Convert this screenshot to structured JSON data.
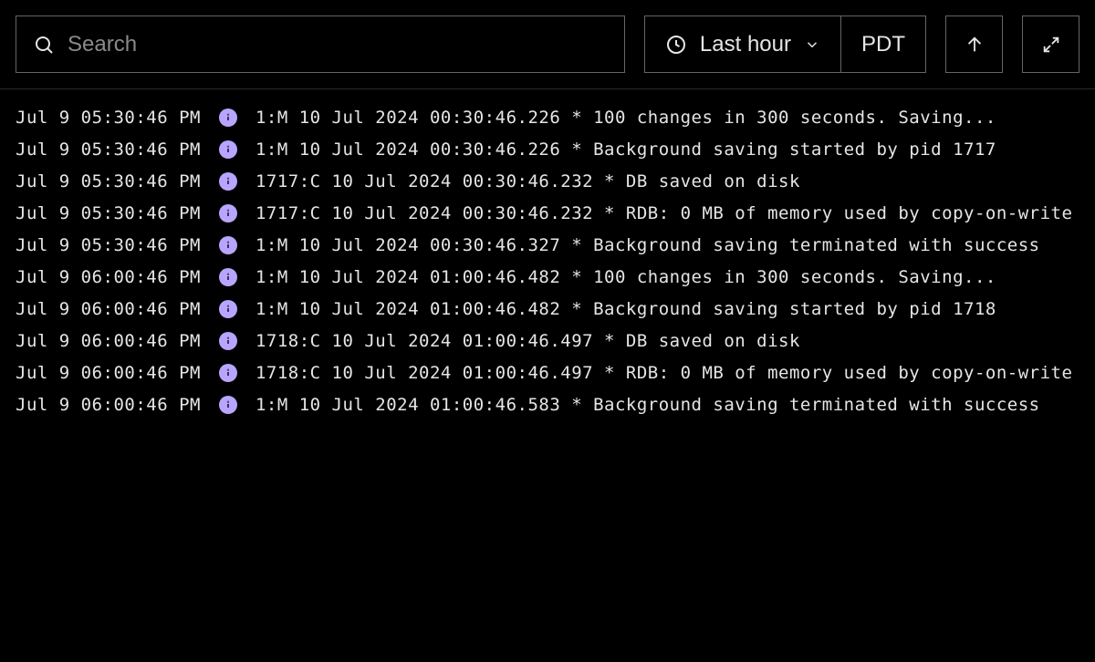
{
  "toolbar": {
    "search_placeholder": "Search",
    "time_range_label": "Last hour",
    "timezone_label": "PDT"
  },
  "colors": {
    "background": "#000000",
    "text": "#e5e5e5",
    "border": "#666666",
    "placeholder": "#8a8a8a",
    "info_badge": "#b8a5ff",
    "info_badge_text": "#2a2040",
    "divider": "#2a2a2a"
  },
  "log_level_icon": "info",
  "logs": [
    {
      "ts": "Jul 9 05:30:46 PM",
      "level": "info",
      "msg": "1:M 10 Jul 2024 00:30:46.226 * 100 changes in 300 seconds. Saving..."
    },
    {
      "ts": "Jul 9 05:30:46 PM",
      "level": "info",
      "msg": "1:M 10 Jul 2024 00:30:46.226 * Background saving started by pid 1717"
    },
    {
      "ts": "Jul 9 05:30:46 PM",
      "level": "info",
      "msg": "1717:C 10 Jul 2024 00:30:46.232 * DB saved on disk"
    },
    {
      "ts": "Jul 9 05:30:46 PM",
      "level": "info",
      "msg": "1717:C 10 Jul 2024 00:30:46.232 * RDB: 0 MB of memory used by copy-on-write"
    },
    {
      "ts": "Jul 9 05:30:46 PM",
      "level": "info",
      "msg": "1:M 10 Jul 2024 00:30:46.327 * Background saving terminated with success"
    },
    {
      "ts": "Jul 9 06:00:46 PM",
      "level": "info",
      "msg": "1:M 10 Jul 2024 01:00:46.482 * 100 changes in 300 seconds. Saving..."
    },
    {
      "ts": "Jul 9 06:00:46 PM",
      "level": "info",
      "msg": "1:M 10 Jul 2024 01:00:46.482 * Background saving started by pid 1718"
    },
    {
      "ts": "Jul 9 06:00:46 PM",
      "level": "info",
      "msg": "1718:C 10 Jul 2024 01:00:46.497 * DB saved on disk"
    },
    {
      "ts": "Jul 9 06:00:46 PM",
      "level": "info",
      "msg": "1718:C 10 Jul 2024 01:00:46.497 * RDB: 0 MB of memory used by copy-on-write"
    },
    {
      "ts": "Jul 9 06:00:46 PM",
      "level": "info",
      "msg": "1:M 10 Jul 2024 01:00:46.583 * Background saving terminated with success"
    }
  ]
}
